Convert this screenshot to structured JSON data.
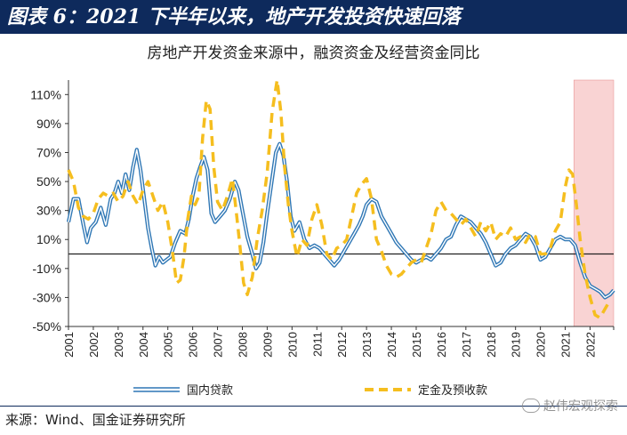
{
  "header": {
    "title": "图表 6：2021 下半年以来，地产开发投资快速回落"
  },
  "chart_data": {
    "type": "line",
    "title": "房地产开发资金来源中，融资资金及经营资金同比",
    "xlabel": "",
    "ylabel": "",
    "ylim": [
      -50,
      120
    ],
    "yticks": [
      "110%",
      "90%",
      "70%",
      "50%",
      "30%",
      "10%",
      "-10%",
      "-30%",
      "-50%"
    ],
    "ytick_values": [
      110,
      90,
      70,
      50,
      30,
      10,
      -10,
      -30,
      -50
    ],
    "categories": [
      "2001",
      "2002",
      "2003",
      "2004",
      "2005",
      "2006",
      "2007",
      "2008",
      "2009",
      "2010",
      "2011",
      "2012",
      "2013",
      "2014",
      "2015",
      "2016",
      "2017",
      "2018",
      "2019",
      "2020",
      "2021",
      "2022"
    ],
    "xlim": [
      2001,
      2022.95
    ],
    "shaded_region": {
      "from": 2021.35,
      "to": 2022.95,
      "color": "#f9d3d3"
    },
    "grid": false,
    "legend_position": "bottom",
    "series": [
      {
        "name": "国内贷款",
        "color": "#2f77b5",
        "style": "double-line",
        "points": [
          [
            2001.0,
            22
          ],
          [
            2001.2,
            38
          ],
          [
            2001.4,
            38
          ],
          [
            2001.6,
            20
          ],
          [
            2001.75,
            8
          ],
          [
            2001.9,
            18
          ],
          [
            2002.1,
            22
          ],
          [
            2002.3,
            32
          ],
          [
            2002.5,
            20
          ],
          [
            2002.7,
            38
          ],
          [
            2002.85,
            42
          ],
          [
            2003.0,
            50
          ],
          [
            2003.15,
            42
          ],
          [
            2003.3,
            55
          ],
          [
            2003.45,
            44
          ],
          [
            2003.6,
            60
          ],
          [
            2003.75,
            72
          ],
          [
            2003.9,
            58
          ],
          [
            2004.05,
            38
          ],
          [
            2004.2,
            18
          ],
          [
            2004.35,
            4
          ],
          [
            2004.5,
            -8
          ],
          [
            2004.65,
            -2
          ],
          [
            2004.8,
            -6
          ],
          [
            2004.95,
            -4
          ],
          [
            2005.1,
            -2
          ],
          [
            2005.3,
            8
          ],
          [
            2005.5,
            16
          ],
          [
            2005.7,
            14
          ],
          [
            2005.85,
            24
          ],
          [
            2006.0,
            40
          ],
          [
            2006.15,
            52
          ],
          [
            2006.3,
            60
          ],
          [
            2006.45,
            67
          ],
          [
            2006.6,
            58
          ],
          [
            2006.75,
            28
          ],
          [
            2006.9,
            22
          ],
          [
            2007.1,
            26
          ],
          [
            2007.3,
            30
          ],
          [
            2007.5,
            38
          ],
          [
            2007.7,
            50
          ],
          [
            2007.85,
            44
          ],
          [
            2008.0,
            30
          ],
          [
            2008.2,
            12
          ],
          [
            2008.4,
            0
          ],
          [
            2008.55,
            -10
          ],
          [
            2008.7,
            -6
          ],
          [
            2008.85,
            8
          ],
          [
            2009.0,
            28
          ],
          [
            2009.2,
            52
          ],
          [
            2009.35,
            70
          ],
          [
            2009.5,
            76
          ],
          [
            2009.65,
            68
          ],
          [
            2009.8,
            50
          ],
          [
            2009.95,
            26
          ],
          [
            2010.1,
            16
          ],
          [
            2010.3,
            22
          ],
          [
            2010.5,
            10
          ],
          [
            2010.7,
            4
          ],
          [
            2010.9,
            6
          ],
          [
            2011.1,
            4
          ],
          [
            2011.3,
            0
          ],
          [
            2011.5,
            -4
          ],
          [
            2011.7,
            -8
          ],
          [
            2011.9,
            -4
          ],
          [
            2012.1,
            2
          ],
          [
            2012.3,
            8
          ],
          [
            2012.5,
            14
          ],
          [
            2012.7,
            20
          ],
          [
            2012.85,
            26
          ],
          [
            2013.0,
            34
          ],
          [
            2013.2,
            38
          ],
          [
            2013.4,
            36
          ],
          [
            2013.6,
            26
          ],
          [
            2013.8,
            20
          ],
          [
            2014.0,
            14
          ],
          [
            2014.2,
            8
          ],
          [
            2014.4,
            4
          ],
          [
            2014.6,
            0
          ],
          [
            2014.8,
            -4
          ],
          [
            2015.0,
            -6
          ],
          [
            2015.2,
            -4
          ],
          [
            2015.4,
            -2
          ],
          [
            2015.6,
            -4
          ],
          [
            2015.8,
            0
          ],
          [
            2016.0,
            4
          ],
          [
            2016.2,
            10
          ],
          [
            2016.4,
            12
          ],
          [
            2016.6,
            20
          ],
          [
            2016.8,
            26
          ],
          [
            2017.0,
            24
          ],
          [
            2017.2,
            22
          ],
          [
            2017.4,
            18
          ],
          [
            2017.6,
            14
          ],
          [
            2017.8,
            8
          ],
          [
            2018.0,
            0
          ],
          [
            2018.2,
            -8
          ],
          [
            2018.4,
            -6
          ],
          [
            2018.6,
            0
          ],
          [
            2018.8,
            4
          ],
          [
            2019.0,
            6
          ],
          [
            2019.2,
            10
          ],
          [
            2019.4,
            14
          ],
          [
            2019.6,
            12
          ],
          [
            2019.8,
            6
          ],
          [
            2020.0,
            -4
          ],
          [
            2020.2,
            -2
          ],
          [
            2020.4,
            4
          ],
          [
            2020.6,
            10
          ],
          [
            2020.8,
            12
          ],
          [
            2021.0,
            10
          ],
          [
            2021.2,
            10
          ],
          [
            2021.4,
            6
          ],
          [
            2021.6,
            -6
          ],
          [
            2021.8,
            -16
          ],
          [
            2022.0,
            -22
          ],
          [
            2022.2,
            -24
          ],
          [
            2022.4,
            -26
          ],
          [
            2022.6,
            -30
          ],
          [
            2022.8,
            -28
          ],
          [
            2022.95,
            -25
          ]
        ]
      },
      {
        "name": "定金及预收款",
        "color": "#f5be1f",
        "style": "dashed",
        "points": [
          [
            2001.0,
            58
          ],
          [
            2001.2,
            50
          ],
          [
            2001.4,
            32
          ],
          [
            2001.6,
            26
          ],
          [
            2001.8,
            24
          ],
          [
            2002.0,
            28
          ],
          [
            2002.2,
            38
          ],
          [
            2002.4,
            42
          ],
          [
            2002.6,
            40
          ],
          [
            2002.8,
            42
          ],
          [
            2003.0,
            36
          ],
          [
            2003.2,
            40
          ],
          [
            2003.4,
            50
          ],
          [
            2003.6,
            40
          ],
          [
            2003.8,
            34
          ],
          [
            2004.0,
            44
          ],
          [
            2004.2,
            50
          ],
          [
            2004.4,
            40
          ],
          [
            2004.6,
            30
          ],
          [
            2004.8,
            36
          ],
          [
            2005.0,
            22
          ],
          [
            2005.2,
            0
          ],
          [
            2005.35,
            -20
          ],
          [
            2005.5,
            -18
          ],
          [
            2005.65,
            -2
          ],
          [
            2005.8,
            24
          ],
          [
            2005.95,
            40
          ],
          [
            2006.1,
            34
          ],
          [
            2006.25,
            40
          ],
          [
            2006.4,
            80
          ],
          [
            2006.55,
            106
          ],
          [
            2006.7,
            100
          ],
          [
            2006.85,
            60
          ],
          [
            2007.0,
            36
          ],
          [
            2007.2,
            30
          ],
          [
            2007.4,
            40
          ],
          [
            2007.6,
            52
          ],
          [
            2007.75,
            30
          ],
          [
            2007.9,
            6
          ],
          [
            2008.05,
            -20
          ],
          [
            2008.2,
            -28
          ],
          [
            2008.4,
            -16
          ],
          [
            2008.6,
            10
          ],
          [
            2008.8,
            30
          ],
          [
            2009.0,
            56
          ],
          [
            2009.2,
            98
          ],
          [
            2009.4,
            120
          ],
          [
            2009.55,
            98
          ],
          [
            2009.7,
            60
          ],
          [
            2009.85,
            34
          ],
          [
            2010.0,
            16
          ],
          [
            2010.2,
            -2
          ],
          [
            2010.4,
            10
          ],
          [
            2010.6,
            6
          ],
          [
            2010.8,
            24
          ],
          [
            2011.0,
            34
          ],
          [
            2011.2,
            20
          ],
          [
            2011.4,
            0
          ],
          [
            2011.6,
            -4
          ],
          [
            2011.8,
            4
          ],
          [
            2012.0,
            6
          ],
          [
            2012.2,
            10
          ],
          [
            2012.4,
            26
          ],
          [
            2012.6,
            42
          ],
          [
            2012.8,
            48
          ],
          [
            2013.0,
            52
          ],
          [
            2013.2,
            38
          ],
          [
            2013.4,
            10
          ],
          [
            2013.6,
            2
          ],
          [
            2013.8,
            -8
          ],
          [
            2014.0,
            -14
          ],
          [
            2014.2,
            -16
          ],
          [
            2014.4,
            -14
          ],
          [
            2014.6,
            -10
          ],
          [
            2014.8,
            -6
          ],
          [
            2015.0,
            -4
          ],
          [
            2015.2,
            -6
          ],
          [
            2015.4,
            4
          ],
          [
            2015.6,
            14
          ],
          [
            2015.8,
            30
          ],
          [
            2016.0,
            36
          ],
          [
            2016.2,
            30
          ],
          [
            2016.4,
            28
          ],
          [
            2016.6,
            24
          ],
          [
            2016.8,
            20
          ],
          [
            2017.0,
            24
          ],
          [
            2017.2,
            18
          ],
          [
            2017.4,
            12
          ],
          [
            2017.6,
            22
          ],
          [
            2017.8,
            16
          ],
          [
            2018.0,
            22
          ],
          [
            2018.2,
            10
          ],
          [
            2018.4,
            14
          ],
          [
            2018.6,
            12
          ],
          [
            2018.8,
            18
          ],
          [
            2019.0,
            10
          ],
          [
            2019.2,
            12
          ],
          [
            2019.4,
            8
          ],
          [
            2019.6,
            14
          ],
          [
            2019.8,
            12
          ],
          [
            2020.0,
            0
          ],
          [
            2020.2,
            0
          ],
          [
            2020.4,
            4
          ],
          [
            2020.6,
            16
          ],
          [
            2020.8,
            22
          ],
          [
            2021.0,
            46
          ],
          [
            2021.15,
            58
          ],
          [
            2021.3,
            55
          ],
          [
            2021.45,
            34
          ],
          [
            2021.6,
            10
          ],
          [
            2021.8,
            -14
          ],
          [
            2022.0,
            -30
          ],
          [
            2022.2,
            -42
          ],
          [
            2022.4,
            -44
          ],
          [
            2022.6,
            -38
          ],
          [
            2022.8,
            -32
          ]
        ]
      }
    ]
  },
  "legend": {
    "loan_label": "国内贷款",
    "deposit_label": "定金及预收款"
  },
  "source": {
    "text": "来源：Wind、国金证券研究所"
  },
  "watermark": {
    "text": "赵伟宏观探索"
  }
}
